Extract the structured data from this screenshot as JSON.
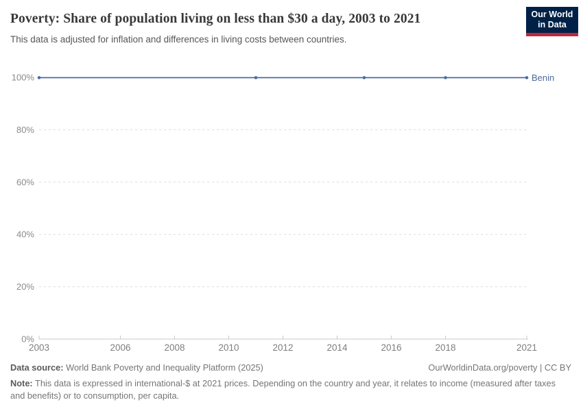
{
  "header": {
    "title": "Poverty: Share of population living on less than $30 a day, 2003 to 2021",
    "subtitle": "This data is adjusted for inflation and differences in living costs between countries."
  },
  "logo": {
    "line1": "Our World",
    "line2": "in Data"
  },
  "colors": {
    "series-blue": "#4C6A9C",
    "logo-navy": "#002147",
    "logo-red": "#C0273F",
    "title-gray": "#383838",
    "text-gray": "#757575",
    "grid-gray": "#dcdcdc",
    "axis-gray": "#c8c8c8",
    "tick-label-gray": "#8a8a8a"
  },
  "chart_data": {
    "type": "line",
    "title": "Poverty: Share of population living on less than $30 a day, 2003 to 2021",
    "subtitle": "This data is adjusted for inflation and differences in living costs between countries.",
    "xlabel": "",
    "ylabel": "",
    "xlim": [
      2003,
      2021
    ],
    "ylim": [
      0,
      100
    ],
    "x_ticks": [
      2003,
      2006,
      2008,
      2010,
      2012,
      2014,
      2016,
      2018,
      2021
    ],
    "y_ticks": [
      0,
      20,
      40,
      60,
      80,
      100
    ],
    "y_tick_suffix": "%",
    "grid": "dashed-horizontal",
    "legend": "inline-end-label",
    "series": [
      {
        "name": "Benin",
        "color": "#4C6A9C",
        "points": [
          {
            "x": 2003,
            "y": 99.9
          },
          {
            "x": 2011,
            "y": 99.9
          },
          {
            "x": 2015,
            "y": 99.9
          },
          {
            "x": 2018,
            "y": 99.9
          },
          {
            "x": 2021,
            "y": 99.9
          }
        ]
      }
    ]
  },
  "footer": {
    "datasource_label": "Data source:",
    "datasource_value": "World Bank Poverty and Inequality Platform (2025)",
    "license": "OurWorldinData.org/poverty | CC BY",
    "note_label": "Note:",
    "note_value": "This data is expressed in international-$ at 2021 prices. Depending on the country and year, it relates to income (measured after taxes and benefits) or to consumption, per capita."
  }
}
